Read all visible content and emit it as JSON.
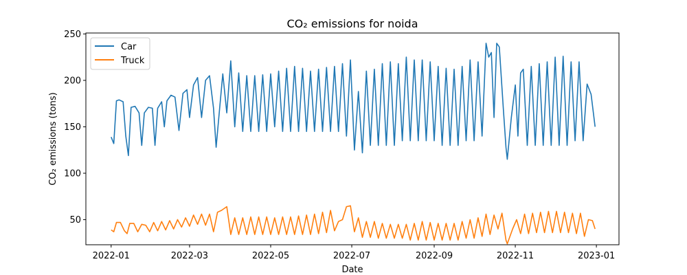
{
  "chart_data": {
    "type": "line",
    "title": "CO₂ emissions for noida",
    "xlabel": "Date",
    "ylabel": "CO₂ emissions (tons)",
    "x_range": [
      "2022-01-01",
      "2022-12-31"
    ],
    "xlim": [
      "2021-12-13",
      "2023-01-18"
    ],
    "ylim": [
      23,
      251
    ],
    "x_ticks": [
      "2022-01-01",
      "2022-03-01",
      "2022-05-01",
      "2022-07-01",
      "2022-09-01",
      "2022-11-01",
      "2023-01-01"
    ],
    "x_tick_labels": [
      "2022-01",
      "2022-03",
      "2022-05",
      "2022-07",
      "2022-09",
      "2022-11",
      "2023-01"
    ],
    "y_ticks": [
      50,
      100,
      150,
      200,
      250
    ],
    "y_tick_labels": [
      "50",
      "100",
      "150",
      "200",
      "250"
    ],
    "grid": false,
    "legend": "top-left",
    "series": [
      {
        "name": "Car",
        "color": "#1f77b4",
        "anchors": [
          [
            "2022-01-01",
            139
          ],
          [
            "2022-01-03",
            132
          ],
          [
            "2022-01-05",
            178
          ],
          [
            "2022-01-07",
            179
          ],
          [
            "2022-01-10",
            177
          ],
          [
            "2022-01-12",
            140
          ],
          [
            "2022-01-14",
            119
          ],
          [
            "2022-01-16",
            171
          ],
          [
            "2022-01-19",
            172
          ],
          [
            "2022-01-22",
            165
          ],
          [
            "2022-01-24",
            130
          ],
          [
            "2022-01-26",
            165
          ],
          [
            "2022-01-29",
            171
          ],
          [
            "2022-02-01",
            170
          ],
          [
            "2022-02-03",
            130
          ],
          [
            "2022-02-05",
            170
          ],
          [
            "2022-02-08",
            177
          ],
          [
            "2022-02-10",
            150
          ],
          [
            "2022-02-12",
            178
          ],
          [
            "2022-02-15",
            184
          ],
          [
            "2022-02-18",
            182
          ],
          [
            "2022-02-21",
            146
          ],
          [
            "2022-02-24",
            186
          ],
          [
            "2022-02-27",
            190
          ],
          [
            "2022-03-01",
            160
          ],
          [
            "2022-03-04",
            195
          ],
          [
            "2022-03-07",
            203
          ],
          [
            "2022-03-10",
            160
          ],
          [
            "2022-03-13",
            200
          ],
          [
            "2022-03-16",
            205
          ],
          [
            "2022-03-19",
            170
          ],
          [
            "2022-03-21",
            128
          ],
          [
            "2022-03-23",
            160
          ],
          [
            "2022-03-26",
            207
          ],
          [
            "2022-03-29",
            165
          ],
          [
            "2022-04-01",
            221
          ],
          [
            "2022-04-04",
            150
          ],
          [
            "2022-04-07",
            208
          ],
          [
            "2022-04-10",
            145
          ],
          [
            "2022-04-13",
            205
          ],
          [
            "2022-04-16",
            145
          ],
          [
            "2022-04-19",
            205
          ],
          [
            "2022-04-22",
            145
          ],
          [
            "2022-04-25",
            206
          ],
          [
            "2022-04-28",
            145
          ],
          [
            "2022-05-01",
            207
          ],
          [
            "2022-05-04",
            150
          ],
          [
            "2022-05-07",
            210
          ],
          [
            "2022-05-10",
            145
          ],
          [
            "2022-05-13",
            213
          ],
          [
            "2022-05-16",
            145
          ],
          [
            "2022-05-19",
            215
          ],
          [
            "2022-05-22",
            145
          ],
          [
            "2022-05-25",
            213
          ],
          [
            "2022-05-28",
            145
          ],
          [
            "2022-05-31",
            210
          ],
          [
            "2022-06-03",
            145
          ],
          [
            "2022-06-06",
            212
          ],
          [
            "2022-06-09",
            145
          ],
          [
            "2022-06-12",
            214
          ],
          [
            "2022-06-15",
            145
          ],
          [
            "2022-06-18",
            215
          ],
          [
            "2022-06-21",
            145
          ],
          [
            "2022-06-24",
            218
          ],
          [
            "2022-06-27",
            140
          ],
          [
            "2022-06-30",
            222
          ],
          [
            "2022-07-03",
            125
          ],
          [
            "2022-07-06",
            188
          ],
          [
            "2022-07-09",
            122
          ],
          [
            "2022-07-12",
            210
          ],
          [
            "2022-07-15",
            130
          ],
          [
            "2022-07-18",
            212
          ],
          [
            "2022-07-21",
            130
          ],
          [
            "2022-07-24",
            218
          ],
          [
            "2022-07-27",
            130
          ],
          [
            "2022-07-30",
            220
          ],
          [
            "2022-08-02",
            130
          ],
          [
            "2022-08-05",
            218
          ],
          [
            "2022-08-08",
            135
          ],
          [
            "2022-08-11",
            225
          ],
          [
            "2022-08-14",
            135
          ],
          [
            "2022-08-17",
            222
          ],
          [
            "2022-08-20",
            135
          ],
          [
            "2022-08-23",
            222
          ],
          [
            "2022-08-26",
            135
          ],
          [
            "2022-08-29",
            220
          ],
          [
            "2022-09-01",
            135
          ],
          [
            "2022-09-04",
            215
          ],
          [
            "2022-09-07",
            130
          ],
          [
            "2022-09-10",
            213
          ],
          [
            "2022-09-13",
            130
          ],
          [
            "2022-09-16",
            212
          ],
          [
            "2022-09-19",
            130
          ],
          [
            "2022-09-22",
            215
          ],
          [
            "2022-09-25",
            135
          ],
          [
            "2022-09-28",
            222
          ],
          [
            "2022-10-01",
            135
          ],
          [
            "2022-10-04",
            220
          ],
          [
            "2022-10-07",
            140
          ],
          [
            "2022-10-10",
            240
          ],
          [
            "2022-10-12",
            225
          ],
          [
            "2022-10-14",
            230
          ],
          [
            "2022-10-16",
            160
          ],
          [
            "2022-10-18",
            240
          ],
          [
            "2022-10-20",
            236
          ],
          [
            "2022-10-23",
            170
          ],
          [
            "2022-10-25",
            128
          ],
          [
            "2022-10-26",
            115
          ],
          [
            "2022-10-29",
            160
          ],
          [
            "2022-11-01",
            195
          ],
          [
            "2022-11-03",
            140
          ],
          [
            "2022-11-05",
            208
          ],
          [
            "2022-11-07",
            212
          ],
          [
            "2022-11-10",
            130
          ],
          [
            "2022-11-13",
            215
          ],
          [
            "2022-11-16",
            130
          ],
          [
            "2022-11-19",
            218
          ],
          [
            "2022-11-22",
            130
          ],
          [
            "2022-11-25",
            220
          ],
          [
            "2022-11-28",
            130
          ],
          [
            "2022-12-01",
            225
          ],
          [
            "2022-12-04",
            130
          ],
          [
            "2022-12-07",
            226
          ],
          [
            "2022-12-10",
            130
          ],
          [
            "2022-12-13",
            220
          ],
          [
            "2022-12-16",
            135
          ],
          [
            "2022-12-19",
            220
          ],
          [
            "2022-12-22",
            135
          ],
          [
            "2022-12-25",
            196
          ],
          [
            "2022-12-28",
            185
          ],
          [
            "2022-12-31",
            150
          ]
        ]
      },
      {
        "name": "Truck",
        "color": "#ff7f0e",
        "anchors": [
          [
            "2022-01-01",
            39
          ],
          [
            "2022-01-03",
            37
          ],
          [
            "2022-01-05",
            47
          ],
          [
            "2022-01-08",
            47
          ],
          [
            "2022-01-11",
            38
          ],
          [
            "2022-01-13",
            35
          ],
          [
            "2022-01-15",
            46
          ],
          [
            "2022-01-18",
            46
          ],
          [
            "2022-01-21",
            37
          ],
          [
            "2022-01-24",
            45
          ],
          [
            "2022-01-27",
            44
          ],
          [
            "2022-01-30",
            37
          ],
          [
            "2022-02-02",
            47
          ],
          [
            "2022-02-05",
            38
          ],
          [
            "2022-02-08",
            48
          ],
          [
            "2022-02-11",
            39
          ],
          [
            "2022-02-14",
            49
          ],
          [
            "2022-02-17",
            40
          ],
          [
            "2022-02-20",
            50
          ],
          [
            "2022-02-23",
            42
          ],
          [
            "2022-02-26",
            52
          ],
          [
            "2022-03-01",
            43
          ],
          [
            "2022-03-04",
            55
          ],
          [
            "2022-03-07",
            45
          ],
          [
            "2022-03-10",
            56
          ],
          [
            "2022-03-13",
            44
          ],
          [
            "2022-03-16",
            56
          ],
          [
            "2022-03-19",
            37
          ],
          [
            "2022-03-22",
            58
          ],
          [
            "2022-03-25",
            60
          ],
          [
            "2022-03-29",
            64
          ],
          [
            "2022-04-01",
            34
          ],
          [
            "2022-04-04",
            52
          ],
          [
            "2022-04-07",
            34
          ],
          [
            "2022-04-10",
            52
          ],
          [
            "2022-04-13",
            34
          ],
          [
            "2022-04-16",
            53
          ],
          [
            "2022-04-19",
            34
          ],
          [
            "2022-04-22",
            53
          ],
          [
            "2022-04-25",
            34
          ],
          [
            "2022-04-28",
            53
          ],
          [
            "2022-05-01",
            34
          ],
          [
            "2022-05-04",
            52
          ],
          [
            "2022-05-07",
            34
          ],
          [
            "2022-05-10",
            53
          ],
          [
            "2022-05-13",
            34
          ],
          [
            "2022-05-16",
            53
          ],
          [
            "2022-05-19",
            34
          ],
          [
            "2022-05-22",
            54
          ],
          [
            "2022-05-25",
            34
          ],
          [
            "2022-05-28",
            55
          ],
          [
            "2022-05-31",
            34
          ],
          [
            "2022-06-03",
            56
          ],
          [
            "2022-06-06",
            35
          ],
          [
            "2022-06-09",
            58
          ],
          [
            "2022-06-12",
            36
          ],
          [
            "2022-06-15",
            60
          ],
          [
            "2022-06-18",
            38
          ],
          [
            "2022-06-21",
            48
          ],
          [
            "2022-06-24",
            50
          ],
          [
            "2022-06-27",
            64
          ],
          [
            "2022-06-30",
            65
          ],
          [
            "2022-07-03",
            37
          ],
          [
            "2022-07-06",
            52
          ],
          [
            "2022-07-09",
            31
          ],
          [
            "2022-07-12",
            48
          ],
          [
            "2022-07-15",
            31
          ],
          [
            "2022-07-18",
            48
          ],
          [
            "2022-07-21",
            30
          ],
          [
            "2022-07-24",
            46
          ],
          [
            "2022-07-27",
            30
          ],
          [
            "2022-07-30",
            45
          ],
          [
            "2022-08-02",
            30
          ],
          [
            "2022-08-05",
            45
          ],
          [
            "2022-08-08",
            30
          ],
          [
            "2022-08-11",
            45
          ],
          [
            "2022-08-14",
            28
          ],
          [
            "2022-08-17",
            46
          ],
          [
            "2022-08-20",
            28
          ],
          [
            "2022-08-23",
            48
          ],
          [
            "2022-08-26",
            28
          ],
          [
            "2022-08-29",
            47
          ],
          [
            "2022-09-01",
            28
          ],
          [
            "2022-09-04",
            46
          ],
          [
            "2022-09-07",
            28
          ],
          [
            "2022-09-10",
            46
          ],
          [
            "2022-09-13",
            28
          ],
          [
            "2022-09-16",
            46
          ],
          [
            "2022-09-19",
            28
          ],
          [
            "2022-09-22",
            48
          ],
          [
            "2022-09-25",
            30
          ],
          [
            "2022-09-28",
            50
          ],
          [
            "2022-10-01",
            30
          ],
          [
            "2022-10-04",
            52
          ],
          [
            "2022-10-07",
            32
          ],
          [
            "2022-10-10",
            56
          ],
          [
            "2022-10-13",
            34
          ],
          [
            "2022-10-16",
            55
          ],
          [
            "2022-10-19",
            40
          ],
          [
            "2022-10-22",
            57
          ],
          [
            "2022-10-25",
            28
          ],
          [
            "2022-10-26",
            24
          ],
          [
            "2022-10-30",
            40
          ],
          [
            "2022-11-02",
            50
          ],
          [
            "2022-11-05",
            35
          ],
          [
            "2022-11-08",
            56
          ],
          [
            "2022-11-11",
            35
          ],
          [
            "2022-11-14",
            57
          ],
          [
            "2022-11-17",
            36
          ],
          [
            "2022-11-20",
            58
          ],
          [
            "2022-11-23",
            36
          ],
          [
            "2022-11-26",
            59
          ],
          [
            "2022-11-29",
            36
          ],
          [
            "2022-12-02",
            59
          ],
          [
            "2022-12-05",
            36
          ],
          [
            "2022-12-08",
            58
          ],
          [
            "2022-12-11",
            36
          ],
          [
            "2022-12-14",
            57
          ],
          [
            "2022-12-17",
            35
          ],
          [
            "2022-12-20",
            57
          ],
          [
            "2022-12-23",
            32
          ],
          [
            "2022-12-26",
            50
          ],
          [
            "2022-12-29",
            49
          ],
          [
            "2022-12-31",
            40
          ]
        ]
      }
    ]
  }
}
